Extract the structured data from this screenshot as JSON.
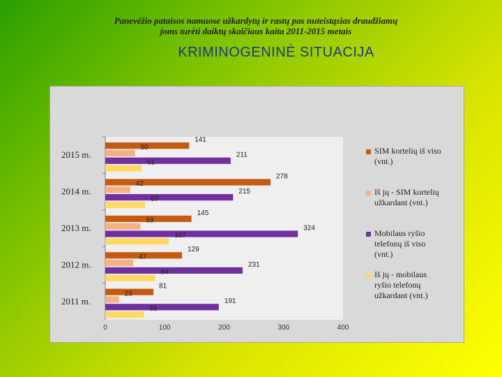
{
  "slide": {
    "title": "KRIMINOGENINĖ SITUACIJA"
  },
  "chart_data": {
    "type": "bar",
    "orientation": "horizontal",
    "title_lines": [
      "Panevėžio pataisos namuose užkardytų ir rastų pas nuteistąsias draudžiamų",
      "joms turėti daiktų skaičiaus kaita 2011-2015 metais"
    ],
    "categories": [
      "2015 m.",
      "2014 m.",
      "2013 m.",
      "2012 m.",
      "2011 m."
    ],
    "series": [
      {
        "name_lines": [
          "SIM kortelių iš viso",
          "(vnt.)"
        ],
        "color": "#c55a11",
        "values": [
          141,
          278,
          145,
          129,
          81
        ]
      },
      {
        "name_lines": [
          "Iš jų - SIM kortelių",
          "užkardant (vnt.)"
        ],
        "color": "#f4b183",
        "values": [
          50,
          42,
          59,
          47,
          23
        ]
      },
      {
        "name_lines": [
          "Mobilaus ryšio",
          "telefonų iš viso",
          "(vnt.)"
        ],
        "color": "#7030a0",
        "values": [
          211,
          215,
          324,
          231,
          191
        ]
      },
      {
        "name_lines": [
          "Iš jų - mobilaus",
          "ryšio telefonų",
          "užkardant (vnt.)"
        ],
        "color": "#ffd966",
        "values": [
          61,
          67,
          107,
          84,
          65
        ]
      }
    ],
    "xlim": [
      0,
      400
    ],
    "xticks": [
      0,
      100,
      200,
      300,
      400
    ],
    "legend_position": "right",
    "grid": false
  }
}
